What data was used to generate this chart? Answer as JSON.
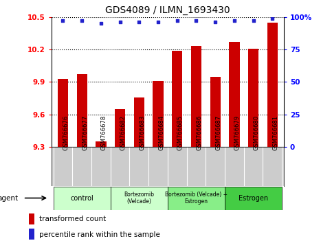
{
  "title": "GDS4089 / ILMN_1693430",
  "samples": [
    "GSM766676",
    "GSM766677",
    "GSM766678",
    "GSM766682",
    "GSM766683",
    "GSM766684",
    "GSM766685",
    "GSM766686",
    "GSM766687",
    "GSM766679",
    "GSM766680",
    "GSM766681"
  ],
  "bar_values": [
    9.93,
    9.97,
    9.35,
    9.65,
    9.76,
    9.91,
    10.19,
    10.23,
    9.95,
    10.27,
    10.21,
    10.45
  ],
  "percentile_values": [
    97,
    97,
    95,
    96,
    96,
    96,
    97,
    97,
    96,
    97,
    97,
    99
  ],
  "bar_color": "#cc0000",
  "dot_color": "#2222cc",
  "bar_bottom": 9.3,
  "ylim_left": [
    9.3,
    10.5
  ],
  "ylim_right": [
    0,
    100
  ],
  "yticks_left": [
    9.3,
    9.6,
    9.9,
    10.2,
    10.5
  ],
  "yticks_right": [
    0,
    25,
    50,
    75,
    100
  ],
  "ytick_labels_left": [
    "9.3",
    "9.6",
    "9.9",
    "10.2",
    "10.5"
  ],
  "ytick_labels_right": [
    "0",
    "25",
    "50",
    "75",
    "100%"
  ],
  "groups": [
    {
      "label": "control",
      "start": 0,
      "end": 3,
      "color": "#ccffcc"
    },
    {
      "label": "Bortezomib\n(Velcade)",
      "start": 3,
      "end": 6,
      "color": "#ccffcc"
    },
    {
      "label": "Bortezomib (Velcade) +\nEstrogen",
      "start": 6,
      "end": 9,
      "color": "#88ee88"
    },
    {
      "label": "Estrogen",
      "start": 9,
      "end": 12,
      "color": "#44cc44"
    }
  ],
  "agent_label": "agent",
  "legend_bar_label": "transformed count",
  "legend_dot_label": "percentile rank within the sample",
  "tick_area_color": "#cccccc"
}
